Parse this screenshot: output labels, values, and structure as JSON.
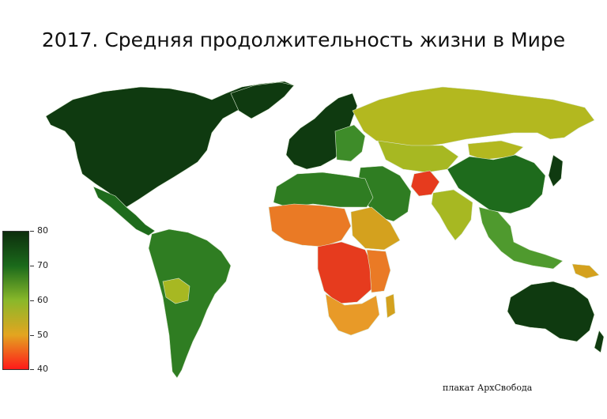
{
  "title": "2017. Средняя продолжительность жизни в Мире",
  "legend": {
    "ticks": [
      "80",
      "70",
      "60",
      "50",
      "40"
    ],
    "stops": [
      "#0d2d0d",
      "#1b6a1b",
      "#8ab82a",
      "#e3a520",
      "#ff1a1a"
    ]
  },
  "credit": "плакат АрхСвобода",
  "colors": {
    "very_high": "#0f3a10",
    "high": "#1e6b1c",
    "mid_high": "#4f9a2e",
    "mid": "#a7b822",
    "mid_low": "#d4a11e",
    "low": "#ea7a25",
    "very_low": "#e63b1e"
  }
}
